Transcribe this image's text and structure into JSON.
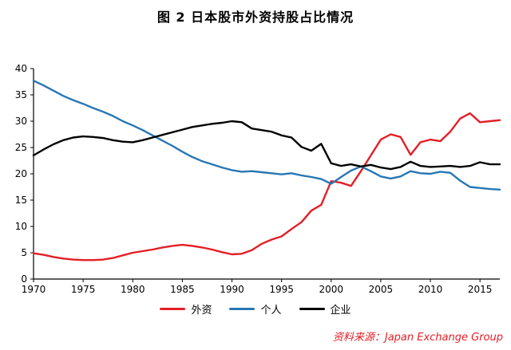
{
  "title": "图 2 日本股市外资持股占比情况",
  "source": "资料来源：Japan Exchange Group",
  "chart_data": {
    "type": "line",
    "title": "图 2 日本股市外资持股占比情况",
    "xlabel": "",
    "ylabel": "",
    "xlim": [
      1970,
      2017
    ],
    "ylim": [
      0,
      40
    ],
    "xticks": [
      1970,
      1975,
      1980,
      1985,
      1990,
      1995,
      2000,
      2005,
      2010,
      2015
    ],
    "yticks": [
      0,
      5,
      10,
      15,
      20,
      25,
      30,
      35,
      40
    ],
    "grid": false,
    "legend_position": "bottom",
    "x": [
      1970,
      1971,
      1972,
      1973,
      1974,
      1975,
      1976,
      1977,
      1978,
      1979,
      1980,
      1981,
      1982,
      1983,
      1984,
      1985,
      1986,
      1987,
      1988,
      1989,
      1990,
      1991,
      1992,
      1993,
      1994,
      1995,
      1996,
      1997,
      1998,
      1999,
      2000,
      2001,
      2002,
      2003,
      2004,
      2005,
      2006,
      2007,
      2008,
      2009,
      2010,
      2011,
      2012,
      2013,
      2014,
      2015,
      2016,
      2017
    ],
    "series": [
      {
        "key": "foreign",
        "name": "外资",
        "color": "#e41e26",
        "values": [
          4.9,
          4.6,
          4.2,
          3.9,
          3.7,
          3.6,
          3.6,
          3.7,
          4.0,
          4.5,
          5.0,
          5.3,
          5.6,
          6.0,
          6.3,
          6.5,
          6.3,
          6.0,
          5.6,
          5.1,
          4.7,
          4.8,
          5.5,
          6.7,
          7.5,
          8.1,
          9.5,
          10.8,
          13.0,
          14.1,
          18.6,
          18.3,
          17.7,
          20.5,
          23.5,
          26.5,
          27.5,
          27.0,
          23.6,
          26.0,
          26.5,
          26.2,
          28.0,
          30.5,
          31.5,
          29.8,
          30.0,
          30.2
        ]
      },
      {
        "key": "individual",
        "name": "个人",
        "color": "#2777b4",
        "values": [
          37.7,
          36.8,
          35.8,
          34.8,
          34.0,
          33.3,
          32.5,
          31.8,
          31.0,
          30.0,
          29.2,
          28.3,
          27.3,
          26.3,
          25.3,
          24.2,
          23.2,
          22.4,
          21.8,
          21.2,
          20.7,
          20.4,
          20.5,
          20.3,
          20.1,
          19.9,
          20.1,
          19.7,
          19.4,
          19.0,
          18.1,
          19.4,
          20.6,
          21.4,
          20.5,
          19.5,
          19.1,
          19.5,
          20.5,
          20.1,
          20.0,
          20.4,
          20.2,
          18.7,
          17.5,
          17.3,
          17.1,
          17.0
        ]
      },
      {
        "key": "enterprise",
        "name": "企业",
        "color": "#000000",
        "values": [
          23.5,
          24.6,
          25.6,
          26.4,
          26.9,
          27.1,
          27.0,
          26.8,
          26.4,
          26.1,
          26.0,
          26.4,
          26.9,
          27.4,
          27.9,
          28.4,
          28.9,
          29.2,
          29.5,
          29.7,
          30.0,
          29.8,
          28.6,
          28.3,
          28.0,
          27.3,
          26.9,
          25.1,
          24.4,
          25.7,
          22.0,
          21.5,
          21.8,
          21.4,
          21.7,
          21.2,
          20.9,
          21.3,
          22.3,
          21.5,
          21.3,
          21.4,
          21.5,
          21.3,
          21.5,
          22.2,
          21.8,
          21.8
        ]
      }
    ]
  }
}
